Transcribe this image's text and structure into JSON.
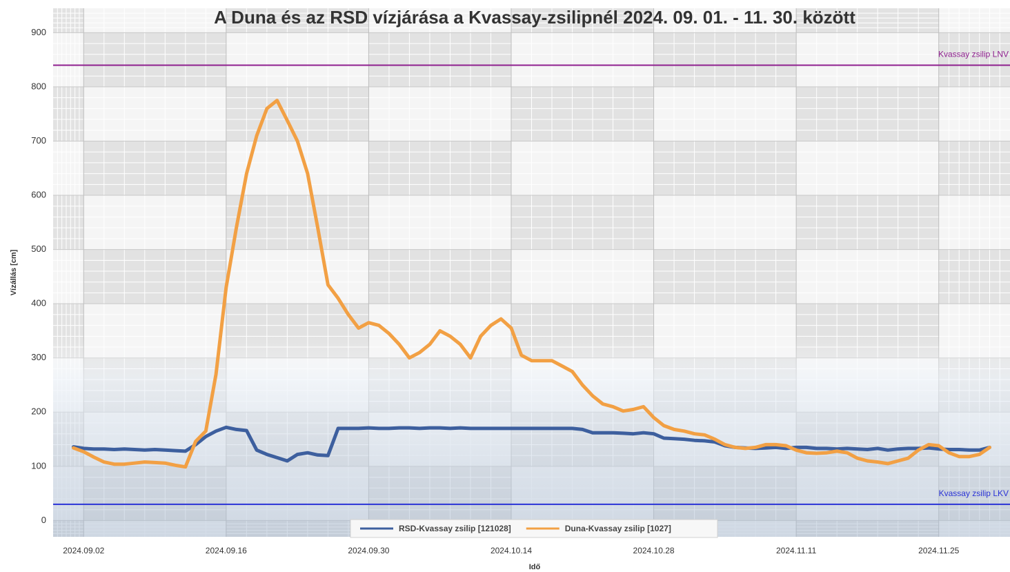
{
  "chart_data": {
    "type": "line",
    "title": "A Duna és az RSD vízjárása a Kvassay-zsilipnél 2024. 09. 01. - 11. 30. között",
    "x_label": "Idő",
    "y_label": "Vízállás [cm]",
    "x": [
      "2024.09.01",
      "2024.09.02",
      "2024.09.03",
      "2024.09.04",
      "2024.09.05",
      "2024.09.06",
      "2024.09.07",
      "2024.09.08",
      "2024.09.09",
      "2024.09.10",
      "2024.09.11",
      "2024.09.12",
      "2024.09.13",
      "2024.09.14",
      "2024.09.15",
      "2024.09.16",
      "2024.09.17",
      "2024.09.18",
      "2024.09.19",
      "2024.09.20",
      "2024.09.21",
      "2024.09.22",
      "2024.09.23",
      "2024.09.24",
      "2024.09.25",
      "2024.09.26",
      "2024.09.27",
      "2024.09.28",
      "2024.09.29",
      "2024.09.30",
      "2024.10.01",
      "2024.10.02",
      "2024.10.03",
      "2024.10.04",
      "2024.10.05",
      "2024.10.06",
      "2024.10.07",
      "2024.10.08",
      "2024.10.09",
      "2024.10.10",
      "2024.10.11",
      "2024.10.12",
      "2024.10.13",
      "2024.10.14",
      "2024.10.15",
      "2024.10.16",
      "2024.10.17",
      "2024.10.18",
      "2024.10.19",
      "2024.10.20",
      "2024.10.21",
      "2024.10.22",
      "2024.10.23",
      "2024.10.24",
      "2024.10.25",
      "2024.10.26",
      "2024.10.27",
      "2024.10.28",
      "2024.10.29",
      "2024.10.30",
      "2024.10.31",
      "2024.11.01",
      "2024.11.02",
      "2024.11.03",
      "2024.11.04",
      "2024.11.05",
      "2024.11.06",
      "2024.11.07",
      "2024.11.08",
      "2024.11.09",
      "2024.11.10",
      "2024.11.11",
      "2024.11.12",
      "2024.11.13",
      "2024.11.14",
      "2024.11.15",
      "2024.11.16",
      "2024.11.17",
      "2024.11.18",
      "2024.11.19",
      "2024.11.20",
      "2024.11.21",
      "2024.11.22",
      "2024.11.23",
      "2024.11.24",
      "2024.11.25",
      "2024.11.26",
      "2024.11.27",
      "2024.11.28",
      "2024.11.29",
      "2024.11.30"
    ],
    "series": [
      {
        "name": "RSD-Kvassay zsilip [121028]",
        "color": "#3d5f9e",
        "values": [
          136,
          133,
          132,
          132,
          131,
          132,
          131,
          130,
          131,
          130,
          129,
          128,
          140,
          155,
          165,
          172,
          168,
          166,
          130,
          122,
          116,
          110,
          122,
          125,
          121,
          120,
          170,
          170,
          170,
          171,
          170,
          170,
          171,
          171,
          170,
          171,
          171,
          170,
          171,
          170,
          170,
          170,
          170,
          170,
          170,
          170,
          170,
          170,
          170,
          170,
          168,
          162,
          162,
          162,
          161,
          160,
          162,
          160,
          152,
          151,
          150,
          148,
          147,
          145,
          138,
          135,
          134,
          133,
          134,
          135,
          133,
          135,
          135,
          133,
          133,
          132,
          133,
          132,
          131,
          133,
          130,
          132,
          133,
          133,
          134,
          132,
          131,
          131,
          130,
          130,
          135
        ]
      },
      {
        "name": "Duna-Kvassay zsilip [1027]",
        "color": "#f2a044",
        "values": [
          134,
          127,
          117,
          108,
          104,
          104,
          106,
          108,
          107,
          106,
          102,
          99,
          146,
          165,
          270,
          430,
          540,
          640,
          710,
          760,
          775,
          738,
          700,
          640,
          540,
          435,
          410,
          380,
          355,
          365,
          360,
          345,
          325,
          300,
          310,
          325,
          350,
          340,
          325,
          300,
          340,
          360,
          372,
          355,
          305,
          295,
          295,
          295,
          285,
          275,
          250,
          230,
          215,
          210,
          202,
          205,
          210,
          190,
          175,
          168,
          165,
          160,
          158,
          150,
          140,
          135,
          133,
          135,
          140,
          140,
          138,
          130,
          125,
          124,
          125,
          128,
          125,
          115,
          110,
          108,
          105,
          110,
          115,
          130,
          140,
          138,
          125,
          118,
          118,
          122,
          135
        ]
      }
    ],
    "reference_lines": [
      {
        "label": "Kvassay zsilip LNV",
        "value": 840,
        "color": "#8e1f8e"
      },
      {
        "label": "Kvassay zsilip LKV",
        "value": 30,
        "color": "#2a33d6"
      }
    ],
    "xlim": [
      "2024.08.30",
      "2024.12.02"
    ],
    "xticks": [
      "2024.09.02",
      "2024.09.16",
      "2024.09.30",
      "2024.10.14",
      "2024.10.28",
      "2024.11.11",
      "2024.11.25"
    ],
    "ylim": [
      -30,
      945
    ],
    "yticks": [
      0,
      100,
      200,
      300,
      400,
      500,
      600,
      700,
      800,
      900
    ],
    "grid": true,
    "legend": "bottom"
  }
}
